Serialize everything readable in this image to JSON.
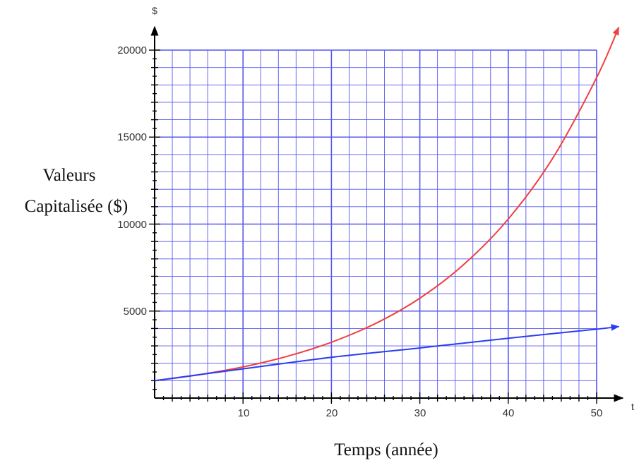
{
  "chart_data": {
    "type": "line",
    "title": "",
    "xlabel": "Temps (année)",
    "ylabel_lines": [
      "Valeurs",
      "Capitalisée ($)"
    ],
    "x_axis_symbol": "t",
    "y_axis_symbol": "$",
    "xlim": [
      0,
      50
    ],
    "ylim": [
      0,
      20000
    ],
    "x_ticks": [
      10,
      20,
      30,
      40,
      50
    ],
    "y_ticks": [
      5000,
      10000,
      15000,
      20000
    ],
    "grid": true,
    "colors": {
      "grid": "#5757f0",
      "axis": "#000000",
      "series_red": "#f04040",
      "series_blue": "#2b3df0"
    },
    "series": [
      {
        "color": "#f04040",
        "x": [
          0,
          5,
          10,
          15,
          20,
          25,
          30,
          35,
          40,
          45,
          50,
          52.5
        ],
        "values": [
          1000,
          1340,
          1790,
          2400,
          3210,
          4290,
          5740,
          7690,
          10290,
          13760,
          18420,
          21310
        ]
      },
      {
        "color": "#2b3df0",
        "x": [
          0,
          10,
          20,
          30,
          40,
          50,
          52.5
        ],
        "values": [
          1000,
          1680,
          2340,
          2880,
          3440,
          3960,
          4110
        ]
      }
    ]
  }
}
